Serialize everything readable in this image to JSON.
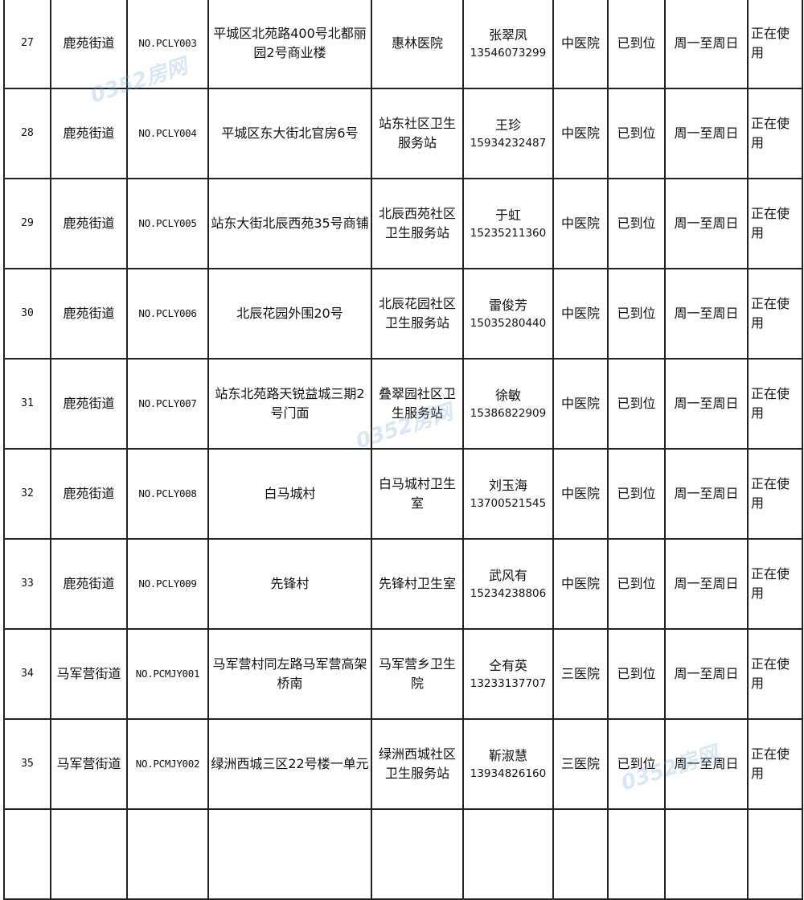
{
  "watermark": "0352房网",
  "rows": [
    {
      "no": "27",
      "street": "鹿苑街道",
      "code": "NO.PCLY003",
      "address": "平城区北苑路400号北都丽园2号商业楼",
      "hospital": "惠林医院",
      "contact": "张翠凤",
      "phone": "13546073299",
      "type": "中医院",
      "status": "已到位",
      "schedule": "周一至周日",
      "use": "正在使用"
    },
    {
      "no": "28",
      "street": "鹿苑街道",
      "code": "NO.PCLY004",
      "address": "平城区东大街北官房6号",
      "hospital": "站东社区卫生服务站",
      "contact": "王珍",
      "phone": "15934232487",
      "type": "中医院",
      "status": "已到位",
      "schedule": "周一至周日",
      "use": "正在使用"
    },
    {
      "no": "29",
      "street": "鹿苑街道",
      "code": "NO.PCLY005",
      "address": "站东大街北辰西苑35号商铺",
      "hospital": "北辰西苑社区卫生服务站",
      "contact": "于虹",
      "phone": "15235211360",
      "type": "中医院",
      "status": "已到位",
      "schedule": "周一至周日",
      "use": "正在使用"
    },
    {
      "no": "30",
      "street": "鹿苑街道",
      "code": "NO.PCLY006",
      "address": "北辰花园外围20号",
      "hospital": "北辰花园社区卫生服务站",
      "contact": "雷俊芳",
      "phone": "15035280440",
      "type": "中医院",
      "status": "已到位",
      "schedule": "周一至周日",
      "use": "正在使用"
    },
    {
      "no": "31",
      "street": "鹿苑街道",
      "code": "NO.PCLY007",
      "address": "站东北苑路天锐益城三期2号门面",
      "hospital": "叠翠园社区卫生服务站",
      "contact": "徐敏",
      "phone": "15386822909",
      "type": "中医院",
      "status": "已到位",
      "schedule": "周一至周日",
      "use": "正在使用"
    },
    {
      "no": "32",
      "street": "鹿苑街道",
      "code": "NO.PCLY008",
      "address": "白马城村",
      "hospital": "白马城村卫生室",
      "contact": "刘玉海",
      "phone": "13700521545",
      "type": "中医院",
      "status": "已到位",
      "schedule": "周一至周日",
      "use": "正在使用"
    },
    {
      "no": "33",
      "street": "鹿苑街道",
      "code": "NO.PCLY009",
      "address": "先锋村",
      "hospital": "先锋村卫生室",
      "contact": "武风有",
      "phone": "15234238806",
      "type": "中医院",
      "status": "已到位",
      "schedule": "周一至周日",
      "use": "正在使用"
    },
    {
      "no": "34",
      "street": "马军营街道",
      "code": "NO.PCMJY001",
      "address": "马军营村同左路马军营高架桥南",
      "hospital": "马军营乡卫生院",
      "contact": "仝有英",
      "phone": "13233137707",
      "type": "三医院",
      "status": "已到位",
      "schedule": "周一至周日",
      "use": "正在使用"
    },
    {
      "no": "35",
      "street": "马军营街道",
      "code": "NO.PCMJY002",
      "address": "绿洲西城三区22号楼一单元",
      "hospital": "绿洲西城社区卫生服务站",
      "contact": "靳淑慧",
      "phone": "13934826160",
      "type": "三医院",
      "status": "已到位",
      "schedule": "周一至周日",
      "use": "正在使用"
    }
  ]
}
